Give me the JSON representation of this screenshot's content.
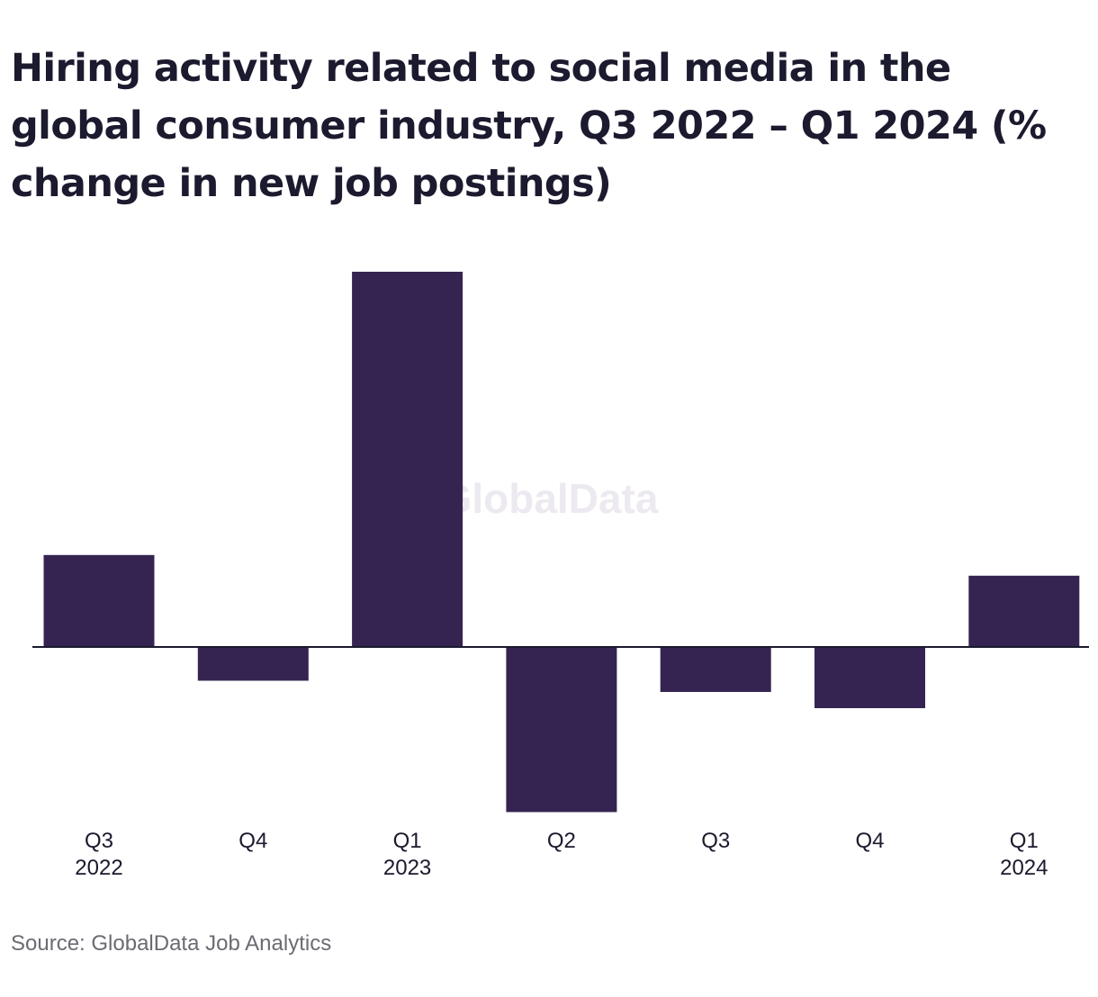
{
  "title": "Hiring activity related to social media in the global consumer industry, Q3 2022 – Q1 2024 (% change in new job postings)",
  "watermark": "GlobalData",
  "source": "Source: GlobalData Job Analytics",
  "colors": {
    "bar": "#352451",
    "axis": "#1b1a2e",
    "watermark": "#ede9f0"
  },
  "chart_data": {
    "type": "bar",
    "categories": [
      [
        "Q3",
        "2022"
      ],
      [
        "Q4",
        ""
      ],
      [
        "Q1",
        "2023"
      ],
      [
        "Q2",
        ""
      ],
      [
        "Q3",
        ""
      ],
      [
        "Q4",
        ""
      ],
      [
        "Q1",
        "2024"
      ]
    ],
    "values": [
      24.5,
      -9,
      100,
      -44,
      -12,
      -16.3,
      19
    ],
    "ylim": [
      -44,
      100
    ],
    "grid": false,
    "legend": "none"
  }
}
